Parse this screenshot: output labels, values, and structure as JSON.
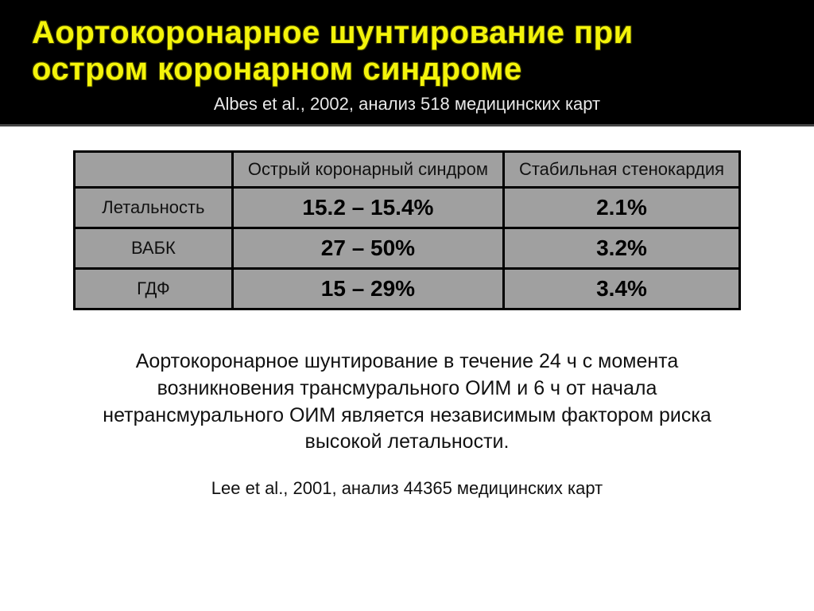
{
  "header": {
    "title_line1": "Аортокоронарное шунтирование при",
    "title_line2": "остром коронарном синдроме",
    "subtitle": "Albes et al., 2002, анализ 518 медицинских карт",
    "title_color": "#f4f40a",
    "title_fontsize": 40,
    "subtitle_color": "#e8e8e8",
    "subtitle_fontsize": 22,
    "background_color": "#000000"
  },
  "table": {
    "type": "table",
    "background_color": "#a0a0a0",
    "border_color": "#000000",
    "border_width": 3,
    "header_fontsize": 22,
    "cell_fontsize": 28,
    "cell_fontweight": "bold",
    "columns": [
      "",
      "Острый коронарный синдром",
      "Стабильная стенокардия"
    ],
    "rows": [
      {
        "label": "Летальность",
        "acs": "15.2 – 15.4%",
        "stable": "2.1%"
      },
      {
        "label": "ВАБК",
        "acs": "27 – 50%",
        "stable": "3.2%"
      },
      {
        "label": "ГДФ",
        "acs": "15 – 29%",
        "stable": "3.4%"
      }
    ]
  },
  "body_paragraph": "Аортокоронарное шунтирование в течение 24 ч с момента возникновения трансмурального ОИМ и 6 ч от начала нетрансмурального ОИМ является независимым фактором риска высокой летальности.",
  "citation2": "Lee et al., 2001, анализ 44365 медицинских карт",
  "body_fontsize": 25,
  "page_background": "#ffffff"
}
